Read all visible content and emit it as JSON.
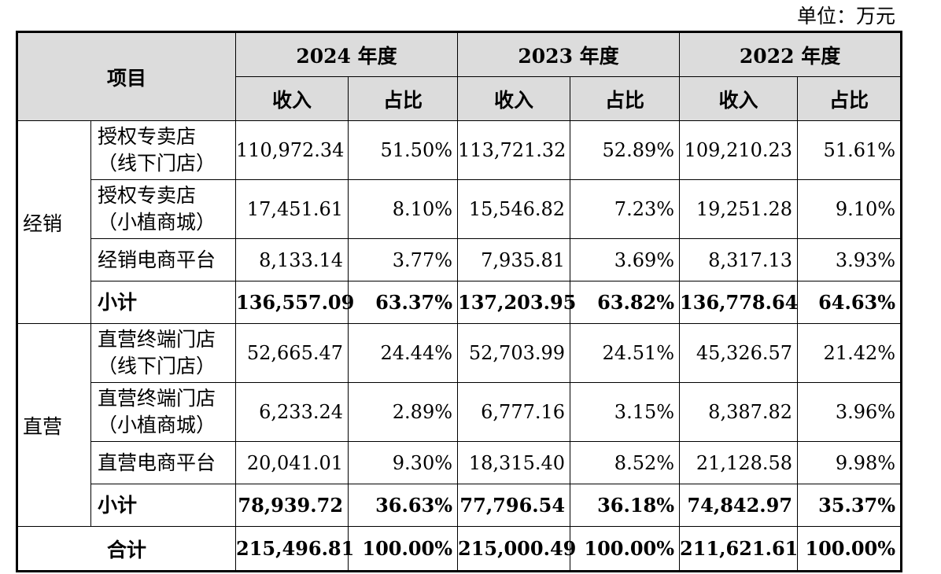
{
  "unit": "单位：万元",
  "header": {
    "item": "项目",
    "years": [
      "2024 年度",
      "2023 年度",
      "2022 年度"
    ],
    "revenue": "收入",
    "share": "占比"
  },
  "groups": [
    {
      "category": "经销",
      "rows": [
        {
          "label1": "授权专卖店",
          "label2": "（线下门店）",
          "values": [
            "110,972.34",
            "51.50%",
            "113,721.32",
            "52.89%",
            "109,210.23",
            "51.61%"
          ]
        },
        {
          "label1": "授权专卖店",
          "label2": "（小植商城）",
          "values": [
            "17,451.61",
            "8.10%",
            "15,546.82",
            "7.23%",
            "19,251.28",
            "9.10%"
          ]
        },
        {
          "label1": "经销电商平台",
          "label2": "",
          "values": [
            "8,133.14",
            "3.77%",
            "7,935.81",
            "3.69%",
            "8,317.13",
            "3.93%"
          ]
        },
        {
          "label1": "小计",
          "label2": "",
          "values": [
            "136,557.09",
            "63.37%",
            "137,203.95",
            "63.82%",
            "136,778.64",
            "64.63%"
          ]
        }
      ]
    },
    {
      "category": "直营",
      "rows": [
        {
          "label1": "直营终端门店",
          "label2": "（线下门店）",
          "values": [
            "52,665.47",
            "24.44%",
            "52,703.99",
            "24.51%",
            "45,326.57",
            "21.42%"
          ]
        },
        {
          "label1": "直营终端门店",
          "label2": "（小植商城）",
          "values": [
            "6,233.24",
            "2.89%",
            "6,777.16",
            "3.15%",
            "8,387.82",
            "3.96%"
          ]
        },
        {
          "label1": "直营电商平台",
          "label2": "",
          "values": [
            "20,041.01",
            "9.30%",
            "18,315.40",
            "8.52%",
            "21,128.58",
            "9.98%"
          ]
        },
        {
          "label1": "小计",
          "label2": "",
          "values": [
            "78,939.72",
            "36.63%",
            "77,796.54",
            "36.18%",
            "74,842.97",
            "35.37%"
          ]
        }
      ]
    }
  ],
  "total": {
    "label": "合计",
    "values": [
      "215,496.81",
      "100.00%",
      "215,000.49",
      "100.00%",
      "211,621.61",
      "100.00%"
    ]
  }
}
